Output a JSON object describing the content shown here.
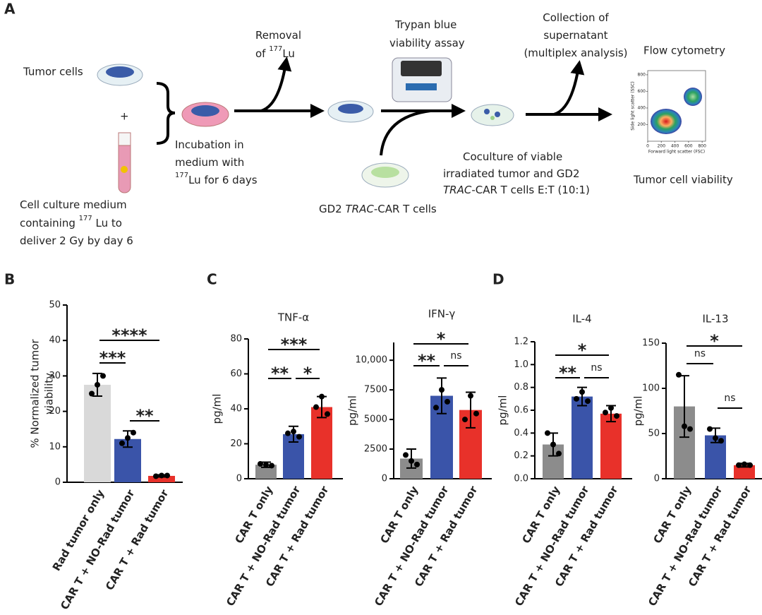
{
  "panel_a": {
    "label": "A",
    "tumor_cells": "Tumor cells",
    "plus": "+",
    "medium": [
      "Cell culture medium",
      "containing ",
      "177",
      " Lu to",
      "deliver 2 Gy by day 6"
    ],
    "incubation": [
      "Incubation in",
      "medium with",
      "177",
      "Lu for 6 days"
    ],
    "removal": [
      "Removal",
      "of ",
      "177",
      "Lu"
    ],
    "trypan": [
      "Trypan blue",
      "viability assay"
    ],
    "car_t": [
      "GD2 ",
      "TRAC",
      "-CAR T cells"
    ],
    "coculture": [
      "Coculture of viable",
      "irradiated tumor and GD2",
      "TRAC",
      "-CAR T cells E:T (10:1)"
    ],
    "collection": [
      "Collection of",
      "supernatant",
      "(multiplex analysis)"
    ],
    "flow": "Flow cytometry",
    "viability": "Tumor cell viability",
    "flow_plot": {
      "x_label": "Forward light scatter (FSC)",
      "y_label": "Side light scatter (SSC)",
      "xticks": [
        0,
        200,
        400,
        600,
        800
      ],
      "yticks": [
        200,
        400,
        600,
        800
      ],
      "lim": [
        0,
        850
      ]
    }
  },
  "chart_data": [
    {
      "type": "bar",
      "panel": "B",
      "y_label": [
        "% Normalized tumor",
        "viability"
      ],
      "categories": [
        "Rad tumor only",
        "CAR T + NO-Rad tumor",
        "CAR T + Rad tumor"
      ],
      "values": [
        27.5,
        12.2,
        1.8
      ],
      "errors": [
        3.2,
        2.3,
        0.3
      ],
      "points": [
        [
          25,
          27.5,
          30
        ],
        [
          11,
          12.5,
          14
        ],
        [
          1.7,
          1.9,
          1.9
        ]
      ],
      "colors": [
        "#d9d9d9",
        "#3a54a9",
        "#e8312a"
      ],
      "ylim": [
        0,
        50
      ],
      "yticks": [
        0,
        10,
        20,
        30,
        40,
        50
      ],
      "significance": [
        {
          "from": 0,
          "to": 2,
          "label": "****"
        },
        {
          "from": 0,
          "to": 1,
          "label": "***"
        },
        {
          "from": 1,
          "to": 2,
          "label": "**"
        }
      ]
    },
    {
      "type": "bar",
      "panel": "C",
      "title": "TNF-α",
      "y_label": [
        "pg/ml"
      ],
      "categories": [
        "CAR T only",
        "CAR T + NO-Rad tumor",
        "CAR T + Rad tumor"
      ],
      "values": [
        8,
        25.5,
        41
      ],
      "errors": [
        1.5,
        4.5,
        6
      ],
      "points": [
        [
          8.5,
          8,
          7.5
        ],
        [
          26,
          27,
          24
        ],
        [
          41,
          47,
          37
        ]
      ],
      "colors": [
        "#8c8c8c",
        "#3a54a9",
        "#e8312a"
      ],
      "ylim": [
        0,
        80
      ],
      "yticks": [
        0,
        20,
        40,
        60,
        80
      ],
      "significance": [
        {
          "from": 0,
          "to": 2,
          "label": "***"
        },
        {
          "from": 0,
          "to": 1,
          "label": "**"
        },
        {
          "from": 1,
          "to": 2,
          "label": "*"
        }
      ]
    },
    {
      "type": "bar",
      "title": "IFN-γ",
      "y_label": [
        "pg/ml"
      ],
      "categories": [
        "CAR T only",
        "CAR T + NO-Rad tumor",
        "CAR T + Rad tumor"
      ],
      "values": [
        1700,
        7000,
        5800
      ],
      "errors": [
        800,
        1500,
        1500
      ],
      "points": [
        [
          2000,
          1500,
          1200
        ],
        [
          6000,
          7500,
          6500
        ],
        [
          5000,
          7000,
          5500
        ]
      ],
      "colors": [
        "#8c8c8c",
        "#3a54a9",
        "#e8312a"
      ],
      "ylim": [
        0,
        11500
      ],
      "yticks": [
        0,
        2500,
        5000,
        7500,
        {
          "value": 10000,
          "label": "10,000"
        }
      ],
      "significance": [
        {
          "from": 0,
          "to": 2,
          "label": "*"
        },
        {
          "from": 0,
          "to": 1,
          "label": "**"
        },
        {
          "from": 1,
          "to": 2,
          "label": "ns"
        }
      ]
    },
    {
      "type": "bar",
      "panel": "D",
      "title": "IL-4",
      "y_label": [
        "pg/ml"
      ],
      "categories": [
        "CAR T only",
        "CAR T + NO-Rad tumor",
        "CAR T + Rad tumor"
      ],
      "values": [
        0.3,
        0.72,
        0.57
      ],
      "errors": [
        0.1,
        0.08,
        0.07
      ],
      "points": [
        [
          0.4,
          0.3,
          0.22
        ],
        [
          0.7,
          0.76,
          0.68
        ],
        [
          0.58,
          0.62,
          0.55
        ]
      ],
      "colors": [
        "#8c8c8c",
        "#3a54a9",
        "#e8312a"
      ],
      "ylim": [
        0,
        1.2
      ],
      "yticks": [
        {
          "value": 0,
          "label": "0.0"
        },
        0.2,
        0.4,
        0.6,
        0.8,
        {
          "value": 1,
          "label": "1.0"
        },
        1.2
      ],
      "significance": [
        {
          "from": 0,
          "to": 2,
          "label": "*"
        },
        {
          "from": 0,
          "to": 1,
          "label": "**"
        },
        {
          "from": 1,
          "to": 2,
          "label": "ns"
        }
      ]
    },
    {
      "type": "bar",
      "title": "IL-13",
      "y_label": [
        "pg/ml"
      ],
      "categories": [
        "CAR T only",
        "CAR T + NO-Rad tumor",
        "CAR T + Rad tumor"
      ],
      "values": [
        80,
        48,
        15
      ],
      "errors": [
        34,
        8,
        2
      ],
      "points": [
        [
          115,
          58,
          55
        ],
        [
          55,
          45,
          42
        ],
        [
          15,
          16,
          15
        ]
      ],
      "colors": [
        "#8c8c8c",
        "#3a54a9",
        "#e8312a"
      ],
      "ylim": [
        0,
        150
      ],
      "yticks": [
        0,
        50,
        100,
        150
      ],
      "significance": [
        {
          "from": 0,
          "to": 2,
          "label": "*"
        },
        {
          "from": 0,
          "to": 1,
          "label": "ns"
        },
        {
          "from": 1,
          "to": 2,
          "label": "ns"
        }
      ]
    }
  ]
}
